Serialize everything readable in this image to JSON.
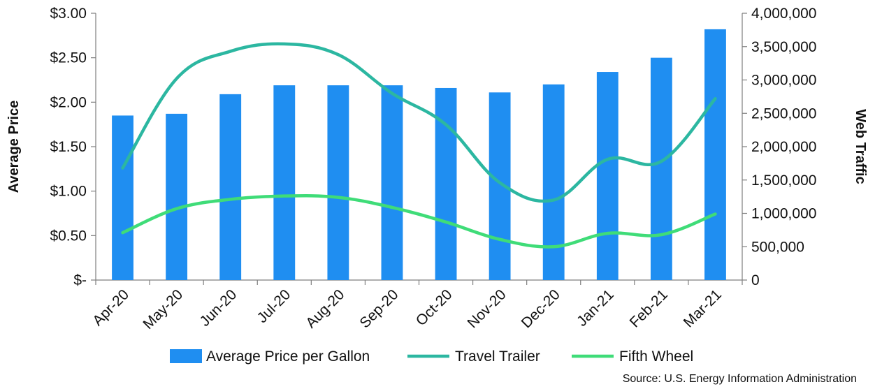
{
  "chart_data": {
    "type": "bar",
    "title": "",
    "categories": [
      "Apr-20",
      "May-20",
      "Jun-20",
      "Jul-20",
      "Aug-20",
      "Sep-20",
      "Oct-20",
      "Nov-20",
      "Dec-20",
      "Jan-21",
      "Feb-21",
      "Mar-21"
    ],
    "series": [
      {
        "name": "Average Price per Gallon",
        "type": "bar",
        "axis": "left",
        "color": "#1f8ef1",
        "values": [
          1.85,
          1.87,
          2.09,
          2.19,
          2.19,
          2.19,
          2.16,
          2.11,
          2.2,
          2.34,
          2.5,
          2.82
        ]
      },
      {
        "name": "Travel Trailer",
        "type": "line",
        "axis": "right",
        "color": "#2cb7a1",
        "values": [
          1680000,
          3020000,
          3430000,
          3540000,
          3380000,
          2800000,
          2330000,
          1460000,
          1200000,
          1810000,
          1780000,
          2720000
        ]
      },
      {
        "name": "Fifth Wheel",
        "type": "line",
        "axis": "right",
        "color": "#3fdc78",
        "values": [
          710000,
          1070000,
          1210000,
          1260000,
          1240000,
          1090000,
          870000,
          610000,
          500000,
          700000,
          680000,
          990000
        ]
      }
    ],
    "ylabel": "Average Price",
    "y2label": "Web Traffic",
    "ylim": [
      0,
      3
    ],
    "y2lim": [
      0,
      4000000
    ],
    "y_ticks": [
      "$-",
      "$0.50",
      "$1.00",
      "$1.50",
      "$2.00",
      "$2.50",
      "$3.00"
    ],
    "y2_ticks": [
      "0",
      "500,000",
      "1,000,000",
      "1,500,000",
      "2,000,000",
      "2,500,000",
      "3,000,000",
      "3,500,000",
      "4,000,000"
    ],
    "legend_position": "bottom",
    "grid": false,
    "source": "Source: U.S. Energy Information Administration"
  }
}
